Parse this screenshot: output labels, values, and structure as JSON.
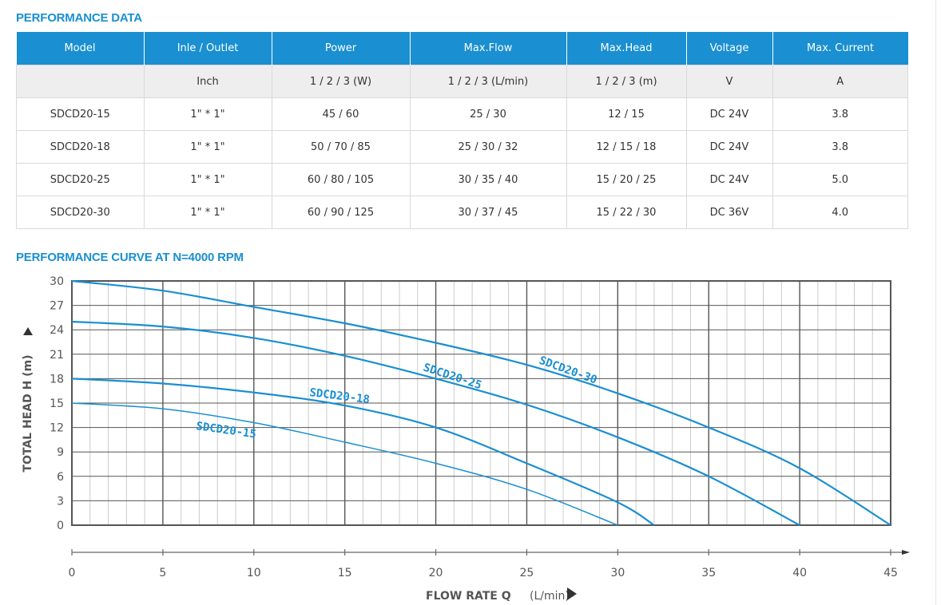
{
  "table_title": "PERFORMANCE DATA",
  "headers": [
    "Model",
    "Inle / Outlet",
    "Power",
    "Max.Flow",
    "Max.Head",
    "Voltage",
    "Max. Current"
  ],
  "units": [
    "",
    "Inch",
    "1 / 2 / 3 (W)",
    "1 / 2 / 3 (L/min)",
    "1 / 2 / 3 (m)",
    "V",
    "A"
  ],
  "rows": [
    [
      "SDCD20-15",
      "1\" * 1\"",
      "45 / 60",
      "25 / 30",
      "12 / 15",
      "DC 24V",
      "3.8"
    ],
    [
      "SDCD20-18",
      "1\" * 1\"",
      "50 / 70 / 85",
      "25 / 30 / 32",
      "12 / 15 / 18",
      "DC 24V",
      "3.8"
    ],
    [
      "SDCD20-25",
      "1\" * 1\"",
      "60 / 80 / 105",
      "30 / 35 / 40",
      "15 / 20 / 25",
      "DC 24V",
      "5.0"
    ],
    [
      "SDCD20-30",
      "1\" * 1\"",
      "60 / 90 / 125",
      "30 / 37 / 45",
      "15 / 22 / 30",
      "DC 36V",
      "4.0"
    ]
  ],
  "chart_title": "PERFORMANCE CURVE AT N=4000 RPM",
  "colors": {
    "accent": "#1a8fd1",
    "grid": "#555555",
    "minor_grid": "#cccccc"
  },
  "chart_data": {
    "type": "line",
    "title": "PERFORMANCE CURVE AT N=4000 RPM",
    "xlabel": "FLOW RATE Q",
    "xunit": "(L/min)",
    "ylabel": "TOTAL HEAD H (m)",
    "xlim": [
      0,
      45
    ],
    "ylim": [
      0,
      30
    ],
    "xticks": [
      0,
      5,
      10,
      15,
      20,
      25,
      30,
      35,
      40,
      45
    ],
    "yticks": [
      0,
      3,
      6,
      9,
      12,
      15,
      18,
      21,
      24,
      27,
      30
    ],
    "grid": true,
    "series": [
      {
        "name": "SDCD20-15",
        "x": [
          0,
          5,
          10,
          15,
          20,
          25,
          30
        ],
        "y": [
          15,
          14.3,
          12.6,
          10.2,
          7.6,
          4.4,
          0
        ]
      },
      {
        "name": "SDCD20-18",
        "x": [
          0,
          5,
          10,
          15,
          20,
          25,
          30,
          32
        ],
        "y": [
          18,
          17.4,
          16.3,
          14.7,
          12.0,
          7.6,
          2.8,
          0
        ]
      },
      {
        "name": "SDCD20-25",
        "x": [
          0,
          5,
          10,
          15,
          20,
          25,
          30,
          35,
          40
        ],
        "y": [
          25,
          24.4,
          23.0,
          20.8,
          18.0,
          14.8,
          10.8,
          6.0,
          0
        ]
      },
      {
        "name": "SDCD20-30",
        "x": [
          0,
          5,
          10,
          15,
          20,
          25,
          30,
          35,
          40,
          45
        ],
        "y": [
          30,
          28.8,
          26.8,
          24.8,
          22.4,
          19.7,
          16.2,
          12.0,
          7.0,
          0
        ]
      }
    ]
  }
}
